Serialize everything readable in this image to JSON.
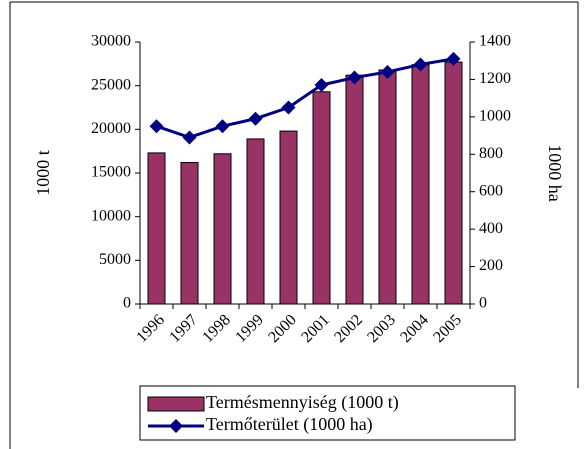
{
  "chart_data": {
    "type": "bar",
    "categories": [
      "1996",
      "1997",
      "1998",
      "1999",
      "2000",
      "2001",
      "2002",
      "2003",
      "2004",
      "2005"
    ],
    "series": [
      {
        "name": "Termésmennyiség (1000 t)",
        "type": "bar",
        "color": "#993366",
        "values": [
          17300,
          16200,
          17200,
          18900,
          19800,
          24300,
          26200,
          26800,
          27400,
          27700
        ]
      },
      {
        "name": "Termőterület (1000 ha)",
        "type": "line",
        "axis": "y2",
        "color": "#000080",
        "values": [
          950,
          890,
          950,
          990,
          1050,
          1170,
          1210,
          1240,
          1280,
          1310
        ]
      }
    ],
    "ylabel": "1000 t",
    "y2label": "1000 ha",
    "ylim": [
      0,
      30000
    ],
    "yticks": [
      0,
      5000,
      10000,
      15000,
      20000,
      25000,
      30000
    ],
    "y2lim": [
      0,
      1400
    ],
    "y2ticks": [
      0,
      200,
      400,
      600,
      800,
      1000,
      1200,
      1400
    ],
    "legend": "bottom"
  }
}
